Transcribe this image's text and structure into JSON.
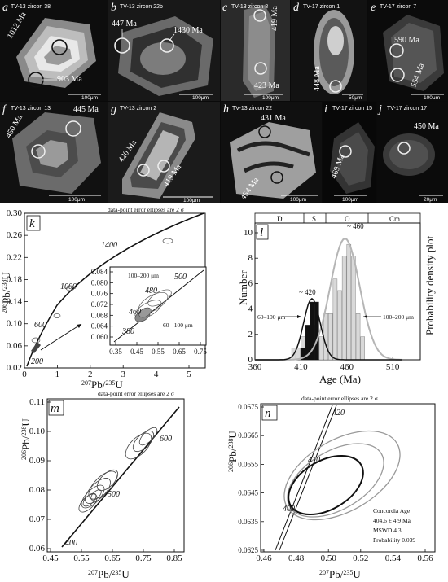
{
  "zircons": [
    {
      "letter": "a",
      "title": "TV-13 zircon 38",
      "ages": [
        "1012 Ma",
        "903 Ma"
      ],
      "scale": "100μm"
    },
    {
      "letter": "b",
      "title": "TV-13 zircon 22b",
      "ages": [
        "447 Ma",
        "1430 Ma"
      ],
      "scale": "100μm"
    },
    {
      "letter": "c",
      "title": "TV-13 zircon 8",
      "ages": [
        "419 Ma",
        "423 Ma"
      ],
      "scale": "100μm"
    },
    {
      "letter": "d",
      "title": "TV-17 zircon 1",
      "ages": [
        "448 Ma"
      ],
      "scale": "50μm"
    },
    {
      "letter": "e",
      "title": "TV-17 zircon 7",
      "ages": [
        "590 Ma",
        "554 Ma"
      ],
      "scale": "100μm"
    },
    {
      "letter": "f",
      "title": "TV-13 zircon 13",
      "ages": [
        "450 Ma",
        "445 Ma"
      ],
      "scale": "100μm"
    },
    {
      "letter": "g",
      "title": "TV-13 zircon 2",
      "ages": [
        "420 Ma",
        "419 Ma"
      ],
      "scale": "100μm"
    },
    {
      "letter": "h",
      "title": "TV-13 zircon 22",
      "ages": [
        "431 Ma",
        "454 Ma"
      ],
      "scale": "100μm"
    },
    {
      "letter": "i",
      "title": "TV-17 zircon 15",
      "ages": [
        "469 Ma"
      ],
      "scale": "100μm"
    },
    {
      "letter": "j",
      "title": "TV-17 zircon 17",
      "ages": [
        "450 Ma"
      ],
      "scale": "20μm"
    }
  ],
  "panel_k": {
    "label": "k",
    "note": "data-point error ellipses are 2 σ",
    "ylabel_num": "206",
    "ylabel_main": "Pb/",
    "ylabel_den": "238",
    "ylabel_end": "U",
    "xlabel_num": "207",
    "xlabel_main": "Pb/",
    "xlabel_den": "235",
    "xlabel_end": "U",
    "ages": [
      "200",
      "600",
      "1000",
      "1400"
    ],
    "inset_ages": [
      "500",
      "480",
      "460",
      "380"
    ],
    "inset_labels": [
      "100–200 μm",
      "60 - 100 μm"
    ]
  },
  "panel_l": {
    "label": "l",
    "periods": [
      "D",
      "S",
      "O",
      "Cm"
    ],
    "peaks": [
      "~ 420",
      "~ 460"
    ],
    "size_labels": [
      "60–100 μm",
      "100–200 μm"
    ],
    "ylabel": "Number",
    "ylabel_right": "Probability density plot",
    "xlabel": "Age (Ma)"
  },
  "panel_m": {
    "label": "m",
    "note": "data-point error ellipses are 2 σ",
    "ages": [
      "400",
      "500",
      "600"
    ],
    "ylabel_num": "206",
    "ylabel_main": "Pb/",
    "ylabel_den": "238",
    "ylabel_end": "U",
    "xlabel_num": "207",
    "xlabel_main": "Pb/",
    "xlabel_den": "235",
    "xlabel_end": "U"
  },
  "panel_n": {
    "label": "n",
    "note": "data-point error ellipses are 2 σ",
    "ages": [
      "400",
      "410",
      "420"
    ],
    "ylabel_num": "206",
    "ylabel_main": "Pb/",
    "ylabel_den": "238",
    "ylabel_end": "U",
    "xlabel_num": "207",
    "xlabel_main": "Pb/",
    "xlabel_den": "235",
    "xlabel_end": "U",
    "result_lines": [
      "Concordia Age",
      "404.6 ± 4.9 Ma",
      "MSWD 4.3",
      "Probability 0.039"
    ]
  },
  "chart_data": [
    {
      "type": "scatter",
      "panel": "k",
      "x_ticks": [
        "0",
        "1",
        "2",
        "3",
        "4",
        "5"
      ],
      "y_ticks": [
        "0.02",
        "0.06",
        "0.10",
        "0.14",
        "0.18",
        "0.22",
        "0.26",
        "0.30"
      ],
      "xlim": [
        0,
        5.9
      ],
      "ylim": [
        0.02,
        0.3
      ],
      "inset": {
        "x_ticks": [
          "0.35",
          "0.45",
          "0.55",
          "0.65",
          "0.75"
        ],
        "y_ticks": [
          "0.084",
          "0.080",
          "0.076",
          "0.072",
          "0.068",
          "0.064",
          "0.060"
        ]
      }
    },
    {
      "type": "bar",
      "panel": "l",
      "x_ticks": [
        "360",
        "410",
        "460",
        "510"
      ],
      "y_ticks": [
        "0",
        "2",
        "4",
        "6",
        "8",
        "10"
      ],
      "xlim": [
        360,
        540
      ],
      "ylim": [
        0,
        11
      ],
      "series": [
        {
          "name": "60–100 μm",
          "bins": [
            410,
            415,
            420,
            425
          ],
          "values": [
            1,
            3,
            5,
            5
          ]
        },
        {
          "name": "100–200 μm",
          "bins": [
            400,
            405,
            410,
            415,
            420,
            425,
            430,
            435,
            440,
            445,
            450,
            455,
            460,
            465,
            470,
            475
          ],
          "values": [
            1,
            1,
            2,
            2,
            3,
            3,
            2,
            4,
            4,
            7,
            6,
            9,
            10,
            9,
            4,
            2
          ]
        }
      ]
    },
    {
      "type": "scatter",
      "panel": "m",
      "x_ticks": [
        "0.45",
        "0.55",
        "0.65",
        "0.75",
        "0.85"
      ],
      "y_ticks": [
        "0.06",
        "0.07",
        "0.08",
        "0.09",
        "0.10",
        "0.11"
      ],
      "xlim": [
        0.45,
        0.88
      ],
      "ylim": [
        0.06,
        0.11
      ]
    },
    {
      "type": "scatter",
      "panel": "n",
      "x_ticks": [
        "0.46",
        "0.48",
        "0.50",
        "0.52",
        "0.54",
        "0.56"
      ],
      "y_ticks": [
        "0.0625",
        "0.0635",
        "0.0645",
        "0.0655",
        "0.0665",
        "0.0675"
      ],
      "xlim": [
        0.46,
        0.57
      ],
      "ylim": [
        0.0625,
        0.0675
      ]
    }
  ]
}
